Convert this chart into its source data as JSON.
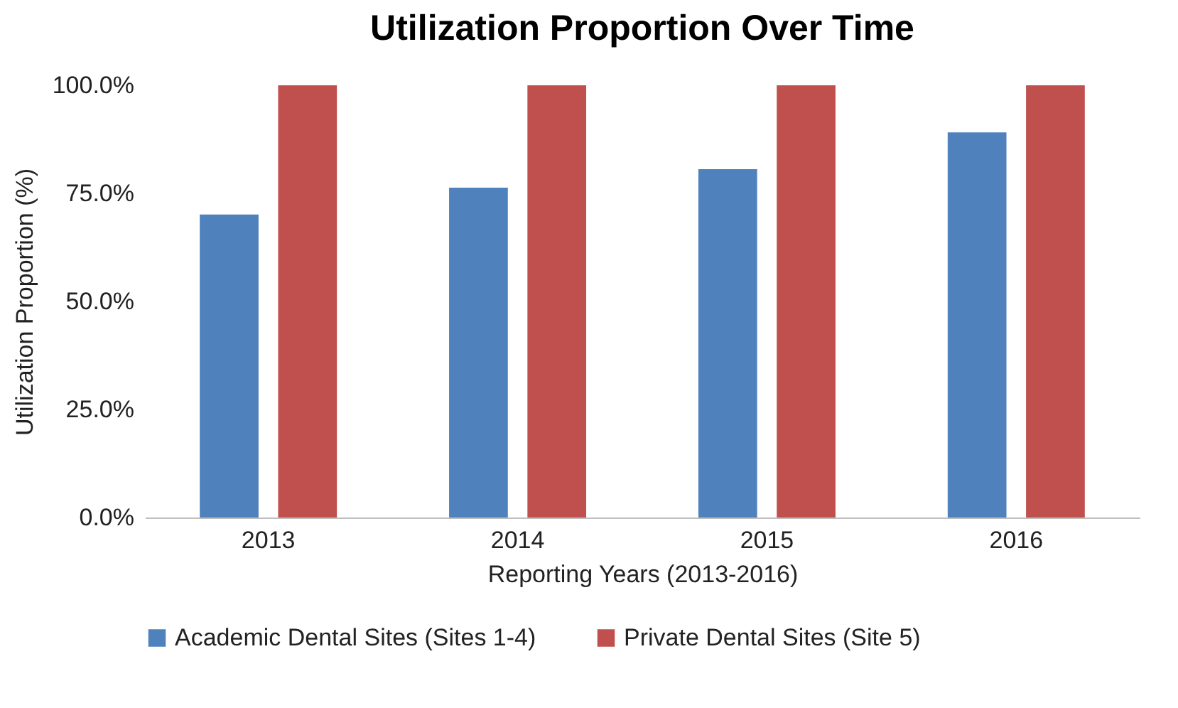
{
  "chart_data": {
    "type": "bar",
    "title": "Utilization Proportion Over Time",
    "xlabel": "Reporting Years (2013-2016)",
    "ylabel": "Utilization Proportion (%)",
    "categories": [
      "2013",
      "2014",
      "2015",
      "2016"
    ],
    "series": [
      {
        "name": "Academic Dental Sites (Sites 1-4)",
        "color": "#4f81bd",
        "values": [
          70.1,
          76.3,
          80.6,
          89.1
        ]
      },
      {
        "name": "Private Dental Sites (Site 5)",
        "color": "#c0504d",
        "values": [
          100,
          100,
          100,
          100
        ]
      }
    ],
    "ylim": [
      0,
      100
    ],
    "yticks": [
      {
        "value": 0,
        "label": "0.0%"
      },
      {
        "value": 25,
        "label": "25.0%"
      },
      {
        "value": 50,
        "label": "50.0%"
      },
      {
        "value": 75,
        "label": "75.0%"
      },
      {
        "value": 100,
        "label": "100.0%"
      }
    ],
    "grid": false,
    "legend": "bottom"
  }
}
